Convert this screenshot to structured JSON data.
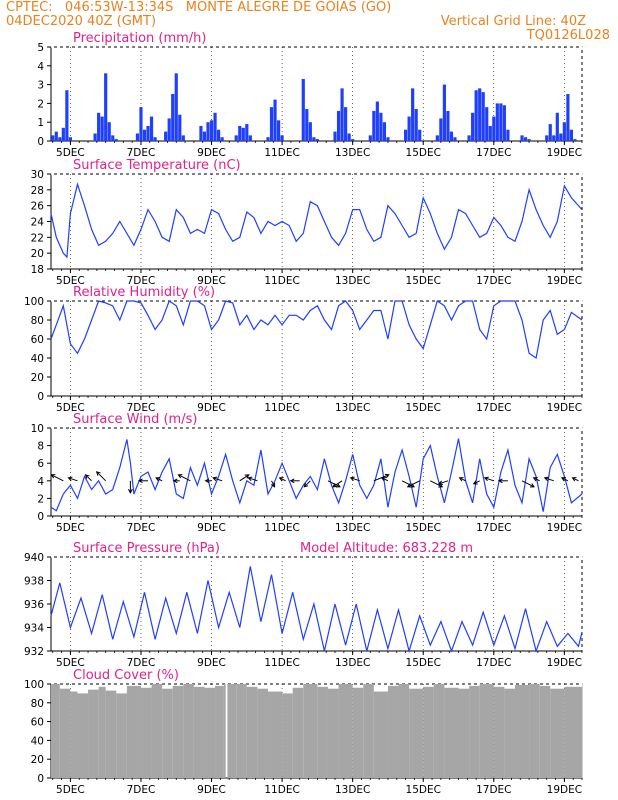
{
  "header": {
    "line1": "CPTEC:   046:53W-13:34S   MONTE ALEGRE DE GOIAS (GO)",
    "line2_left": "04DEC2020 40Z (GMT)",
    "line2_right": "Vertical Grid Line: 40Z",
    "line3_right": "TQ0126L028"
  },
  "colors": {
    "series": "#1f3fff",
    "cloud": "#a6a6a6",
    "title": "#e0218a",
    "header": "#e8821e"
  },
  "x_axis": {
    "start_day": 4.45,
    "end_day": 19.5,
    "ticks": [
      {
        "day": 5,
        "label": "5DEC"
      },
      {
        "day": 7,
        "label": "7DEC"
      },
      {
        "day": 9,
        "label": "9DEC"
      },
      {
        "day": 11,
        "label": "11DEC"
      },
      {
        "day": 13,
        "label": "13DEC"
      },
      {
        "day": 15,
        "label": "15DEC"
      },
      {
        "day": 17,
        "label": "17DEC"
      },
      {
        "day": 19,
        "label": "19DEC"
      }
    ]
  },
  "chart_data": [
    {
      "type": "bar",
      "id": "precip",
      "title": "Precipitation (mm/h)",
      "ylim": [
        0,
        5
      ],
      "yticks": [
        0,
        1,
        2,
        3,
        4,
        5
      ],
      "x_unit": "day of December 2020",
      "x": [
        4.5,
        4.6,
        4.7,
        4.8,
        4.9,
        5.0,
        5.7,
        5.8,
        5.9,
        6.0,
        6.1,
        6.2,
        6.3,
        6.9,
        7.0,
        7.1,
        7.2,
        7.3,
        7.4,
        7.7,
        7.8,
        7.9,
        8.0,
        8.1,
        8.2,
        8.7,
        8.8,
        8.9,
        9.0,
        9.1,
        9.2,
        9.3,
        9.7,
        9.8,
        9.9,
        10.0,
        10.1,
        10.6,
        10.7,
        10.8,
        10.9,
        11.0,
        11.6,
        11.7,
        11.8,
        11.9,
        12.0,
        12.5,
        12.6,
        12.7,
        12.8,
        12.9,
        13.0,
        13.5,
        13.6,
        13.7,
        13.8,
        13.9,
        14.0,
        14.5,
        14.6,
        14.7,
        14.8,
        14.9,
        15.4,
        15.5,
        15.6,
        15.7,
        15.8,
        15.9,
        16.3,
        16.4,
        16.5,
        16.6,
        16.7,
        16.8,
        16.9,
        17.0,
        17.1,
        17.2,
        17.3,
        17.4,
        17.8,
        17.9,
        18.0,
        18.5,
        18.6,
        18.7,
        18.8,
        18.9,
        19.0,
        19.1,
        19.2,
        19.3
      ],
      "values": [
        0.3,
        0.5,
        0.2,
        0.7,
        2.7,
        0.2,
        0.4,
        1.5,
        1.3,
        3.6,
        1.0,
        0.3,
        0.1,
        0.4,
        1.8,
        0.6,
        0.8,
        1.3,
        0.2,
        0.5,
        1.2,
        2.5,
        3.6,
        1.4,
        0.3,
        0.8,
        0.5,
        1.0,
        1.1,
        1.5,
        0.6,
        0.2,
        0.3,
        0.8,
        0.7,
        0.9,
        0.3,
        0.2,
        1.8,
        2.2,
        1.1,
        0.3,
        3.3,
        1.7,
        1.0,
        0.2,
        0.1,
        0.5,
        1.6,
        2.8,
        1.8,
        0.4,
        0.1,
        0.3,
        1.6,
        2.1,
        1.5,
        1.0,
        0.2,
        0.6,
        1.3,
        2.8,
        1.7,
        0.6,
        0.3,
        1.2,
        3.0,
        1.6,
        0.5,
        0.2,
        0.3,
        1.5,
        2.7,
        2.8,
        2.6,
        1.8,
        0.8,
        1.3,
        2.0,
        2.0,
        1.9,
        0.6,
        0.3,
        0.2,
        0.1,
        0.3,
        0.9,
        0.3,
        1.5,
        0.4,
        1.0,
        2.5,
        0.6,
        0.1
      ]
    },
    {
      "type": "line",
      "id": "temp",
      "title": "Surface Temperature (nC)",
      "ylim": [
        18,
        30
      ],
      "yticks": [
        18,
        20,
        22,
        24,
        26,
        28,
        30
      ],
      "x_unit": "day of December 2020",
      "x": [
        4.45,
        4.6,
        4.8,
        4.9,
        5.0,
        5.2,
        5.4,
        5.6,
        5.8,
        6.0,
        6.2,
        6.4,
        6.6,
        6.8,
        7.0,
        7.2,
        7.4,
        7.6,
        7.8,
        8.0,
        8.2,
        8.4,
        8.6,
        8.8,
        9.0,
        9.2,
        9.4,
        9.6,
        9.8,
        10.0,
        10.2,
        10.4,
        10.6,
        10.8,
        11.0,
        11.2,
        11.4,
        11.6,
        11.8,
        12.0,
        12.2,
        12.4,
        12.6,
        12.8,
        13.0,
        13.2,
        13.4,
        13.6,
        13.8,
        14.0,
        14.2,
        14.4,
        14.6,
        14.8,
        15.0,
        15.2,
        15.4,
        15.6,
        15.8,
        16.0,
        16.2,
        16.4,
        16.6,
        16.8,
        17.0,
        17.2,
        17.4,
        17.6,
        17.8,
        18.0,
        18.2,
        18.4,
        18.6,
        18.8,
        19.0,
        19.2,
        19.5
      ],
      "values": [
        25,
        22,
        20,
        19.5,
        25,
        28.7,
        26,
        23,
        21,
        21.5,
        22.5,
        24,
        22.5,
        21,
        23,
        25.5,
        24,
        22,
        21.5,
        25.5,
        24.5,
        22.5,
        23,
        22.5,
        25.5,
        25,
        23,
        21.5,
        22,
        25.2,
        24.5,
        22.5,
        24,
        23.5,
        24,
        23.5,
        21.5,
        22.5,
        26.5,
        26,
        24,
        22,
        21,
        22.5,
        25.5,
        25.5,
        23,
        21.5,
        22,
        26,
        25,
        23.5,
        22,
        22.5,
        27,
        25,
        22.5,
        20.5,
        22,
        25.5,
        25,
        23.5,
        22,
        22.5,
        24.5,
        23.5,
        22,
        21.5,
        24,
        28,
        25.5,
        23.5,
        22,
        24,
        28.5,
        27,
        25.5
      ]
    },
    {
      "type": "line",
      "id": "rh",
      "title": "Relative Humidity (%)",
      "ylim": [
        0,
        100
      ],
      "yticks": [
        0,
        20,
        40,
        60,
        80,
        100
      ],
      "x_unit": "day of December 2020",
      "x": [
        4.45,
        4.6,
        4.8,
        5.0,
        5.2,
        5.4,
        5.6,
        5.8,
        6.0,
        6.2,
        6.4,
        6.6,
        6.8,
        7.0,
        7.2,
        7.4,
        7.6,
        7.8,
        8.0,
        8.2,
        8.4,
        8.6,
        8.8,
        9.0,
        9.2,
        9.4,
        9.6,
        9.8,
        10.0,
        10.2,
        10.4,
        10.6,
        10.8,
        11.0,
        11.2,
        11.4,
        11.6,
        11.8,
        12.0,
        12.2,
        12.4,
        12.6,
        12.8,
        13.0,
        13.2,
        13.4,
        13.6,
        13.8,
        14.0,
        14.2,
        14.4,
        14.6,
        14.8,
        15.0,
        15.2,
        15.4,
        15.6,
        15.8,
        16.0,
        16.2,
        16.4,
        16.6,
        16.8,
        17.0,
        17.2,
        17.4,
        17.6,
        17.8,
        18.0,
        18.2,
        18.4,
        18.6,
        18.8,
        19.0,
        19.2,
        19.5
      ],
      "values": [
        60,
        75,
        95,
        55,
        45,
        60,
        80,
        100,
        98,
        95,
        80,
        100,
        100,
        98,
        85,
        70,
        80,
        100,
        95,
        75,
        100,
        100,
        95,
        70,
        80,
        100,
        98,
        75,
        85,
        70,
        80,
        75,
        85,
        75,
        85,
        85,
        80,
        90,
        95,
        80,
        70,
        95,
        100,
        90,
        70,
        80,
        90,
        90,
        60,
        100,
        100,
        75,
        60,
        50,
        75,
        100,
        95,
        80,
        95,
        100,
        100,
        70,
        60,
        95,
        100,
        100,
        100,
        80,
        45,
        40,
        80,
        90,
        65,
        70,
        88,
        80
      ]
    },
    {
      "type": "line",
      "id": "wind",
      "title": "Surface Wind (m/s)",
      "ylim": [
        0,
        10
      ],
      "yticks": [
        0,
        2,
        4,
        6,
        8,
        10
      ],
      "x_unit": "day of December 2020",
      "x": [
        4.45,
        4.6,
        4.8,
        5.0,
        5.2,
        5.4,
        5.6,
        5.8,
        6.0,
        6.2,
        6.4,
        6.6,
        6.7,
        6.8,
        7.0,
        7.2,
        7.4,
        7.6,
        7.8,
        8.0,
        8.2,
        8.4,
        8.6,
        8.8,
        9.0,
        9.2,
        9.4,
        9.6,
        9.8,
        10.0,
        10.2,
        10.4,
        10.6,
        10.8,
        11.0,
        11.2,
        11.4,
        11.6,
        11.8,
        12.0,
        12.2,
        12.4,
        12.6,
        12.8,
        13.0,
        13.2,
        13.4,
        13.6,
        13.8,
        14.0,
        14.2,
        14.4,
        14.6,
        14.8,
        15.0,
        15.2,
        15.4,
        15.6,
        15.8,
        16.0,
        16.2,
        16.4,
        16.6,
        16.8,
        17.0,
        17.2,
        17.4,
        17.6,
        17.8,
        18.0,
        18.2,
        18.4,
        18.6,
        18.8,
        19.0,
        19.2,
        19.5
      ],
      "values": [
        1.0,
        0.6,
        2.5,
        3.5,
        2.0,
        4.5,
        3.0,
        4.0,
        2.5,
        3.0,
        5.5,
        8.7,
        6.0,
        2.5,
        4.5,
        5.0,
        3.0,
        5.0,
        6.5,
        2.5,
        2.0,
        5.5,
        3.5,
        6.0,
        2.5,
        4.5,
        7.0,
        4.0,
        1.5,
        4.0,
        3.5,
        7.5,
        2.5,
        4.0,
        6.0,
        4.0,
        2.0,
        3.5,
        4.5,
        3.0,
        6.5,
        3.5,
        1.5,
        4.0,
        7.0,
        3.5,
        2.0,
        3.5,
        6.5,
        1.0,
        5.0,
        7.5,
        4.5,
        1.0,
        6.5,
        8.0,
        4.5,
        1.5,
        5.0,
        8.8,
        4.0,
        1.5,
        6.5,
        2.5,
        1.0,
        5.0,
        7.5,
        3.5,
        1.5,
        6.5,
        4.5,
        0.5,
        5.5,
        7.0,
        4.5,
        1.5,
        2.5
      ],
      "vectors": {
        "x": [
          4.8,
          5.2,
          5.6,
          6.0,
          6.7,
          7.2,
          7.6,
          8.1,
          8.4,
          9.0,
          9.3,
          9.8,
          10.3,
          10.7,
          11.1,
          11.5,
          11.8,
          12.3,
          12.7,
          13.2,
          13.6,
          14.0,
          14.4,
          14.9,
          15.2,
          15.7,
          16.2,
          16.6,
          17.0,
          17.4,
          17.8,
          18.3,
          18.7,
          19.1,
          19.4
        ],
        "u": [
          -2.0,
          -1.5,
          -1.0,
          -1.5,
          0.0,
          -1.5,
          -1.0,
          -1.0,
          -2.0,
          -1.0,
          -1.5,
          1.5,
          -1.5,
          0.5,
          -1.0,
          -1.5,
          -1.0,
          2.0,
          -1.5,
          -1.5,
          2.5,
          -1.0,
          2.0,
          -2.0,
          2.0,
          -1.5,
          -1.0,
          -1.0,
          -1.5,
          -1.5,
          2.0,
          -1.0,
          -1.5,
          -1.0,
          -1.0
        ],
        "v": [
          1.0,
          0.5,
          1.0,
          1.5,
          -2.0,
          0.0,
          0.5,
          0.0,
          1.0,
          0.0,
          0.5,
          1.0,
          0.5,
          -1.0,
          0.5,
          0.0,
          -1.0,
          -1.0,
          -1.0,
          0.5,
          1.0,
          0.5,
          -1.0,
          -1.0,
          -1.0,
          -0.5,
          0.5,
          -0.5,
          0.5,
          0.0,
          -1.0,
          0.5,
          0.5,
          0.5,
          0.5
        ]
      }
    },
    {
      "type": "line",
      "id": "pres",
      "title": "Surface Pressure (hPa)",
      "annotation": "Model Altitude: 683.228 m",
      "ylim": [
        932,
        940
      ],
      "yticks": [
        932,
        934,
        936,
        938,
        940
      ],
      "x_unit": "day of December 2020",
      "x": [
        4.45,
        4.7,
        5.0,
        5.3,
        5.6,
        5.9,
        6.2,
        6.5,
        6.8,
        7.1,
        7.4,
        7.7,
        8.0,
        8.3,
        8.6,
        8.9,
        9.2,
        9.5,
        9.8,
        10.1,
        10.4,
        10.7,
        11.0,
        11.3,
        11.6,
        11.9,
        12.2,
        12.5,
        12.8,
        13.1,
        13.4,
        13.7,
        14.0,
        14.3,
        14.6,
        14.9,
        15.2,
        15.5,
        15.8,
        16.1,
        16.4,
        16.7,
        17.0,
        17.3,
        17.6,
        17.9,
        18.2,
        18.5,
        18.8,
        19.1,
        19.4,
        19.5
      ],
      "values": [
        935,
        937.8,
        934,
        936.5,
        933.5,
        936.8,
        933,
        936.2,
        933.2,
        937,
        933,
        936.5,
        933.5,
        937,
        933.5,
        938,
        934,
        937,
        934,
        939.2,
        934.5,
        938.5,
        933.5,
        937,
        933,
        936,
        932,
        936,
        932.5,
        936,
        932,
        935.5,
        932.2,
        935.5,
        932,
        935,
        932.5,
        934.5,
        932,
        934.5,
        932.5,
        935.3,
        932.5,
        935,
        932.2,
        935.6,
        932,
        934.5,
        932.4,
        933.5,
        932.4,
        933.6
      ]
    },
    {
      "type": "area",
      "id": "cloud",
      "title": "Cloud Cover (%)",
      "ylim": [
        0,
        100
      ],
      "yticks": [
        0,
        20,
        40,
        60,
        80,
        100
      ],
      "x_unit": "day of December 2020",
      "x": [
        4.45,
        4.7,
        5.0,
        5.2,
        5.5,
        5.8,
        6.0,
        6.3,
        6.6,
        7.0,
        7.3,
        7.6,
        7.9,
        8.2,
        8.5,
        8.8,
        9.1,
        9.35,
        9.4,
        9.45,
        9.7,
        10.0,
        10.3,
        10.6,
        11.0,
        11.3,
        11.6,
        12.0,
        12.3,
        12.6,
        13.0,
        13.3,
        13.6,
        14.0,
        14.3,
        14.6,
        15.0,
        15.3,
        15.6,
        16.0,
        16.3,
        16.6,
        17.0,
        17.3,
        17.6,
        18.0,
        18.3,
        18.6,
        19.0,
        19.5
      ],
      "values": [
        100,
        95,
        92,
        90,
        94,
        97,
        93,
        90,
        98,
        96,
        100,
        95,
        98,
        100,
        97,
        96,
        98,
        100,
        0,
        100,
        100,
        97,
        95,
        92,
        90,
        96,
        100,
        97,
        95,
        100,
        96,
        100,
        92,
        98,
        100,
        95,
        97,
        100,
        96,
        95,
        98,
        100,
        97,
        95,
        99,
        100,
        98,
        95,
        97,
        100
      ]
    }
  ]
}
